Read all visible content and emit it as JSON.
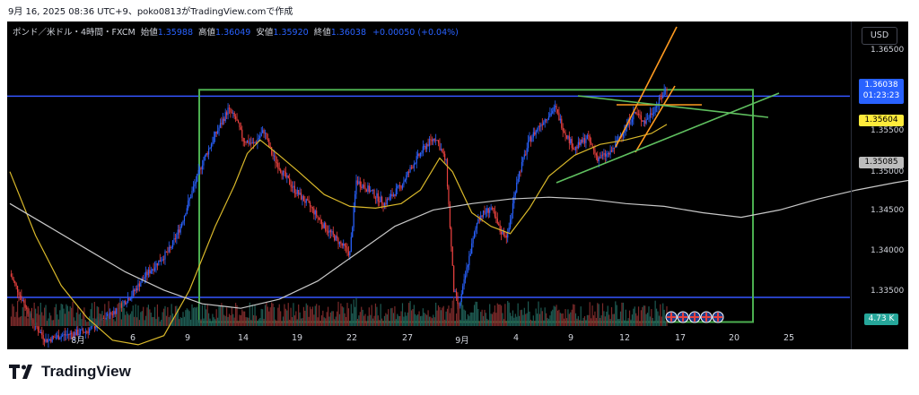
{
  "caption": "9月 16, 2025 08:36 UTC+9、poko0813がTradingView.comで作成",
  "legend": {
    "symbol": "ポンド／米ドル・4時間・FXCM",
    "open_label": "始値",
    "open": "1.35988",
    "high_label": "高値",
    "high": "1.36049",
    "low_label": "安値",
    "low": "1.35920",
    "close_label": "終値",
    "close": "1.36038",
    "change": "+0.00050 (+0.04%)"
  },
  "currency_button": "USD",
  "price_tags": {
    "last_price": "1.36038",
    "countdown": "01:23:23",
    "yellow_ma": "1.35604",
    "gray_ma": "1.35085",
    "volume": "4.73 K"
  },
  "colors": {
    "bull": "#2962ff",
    "bear": "#e8413f",
    "yellow_ma": "#d9b82a",
    "gray_ma": "#c8c8c8",
    "range_box": "#4caf50",
    "hline": "#3455ff",
    "trend_orange": "#ff9a1f",
    "trend_green": "#5fbf5f"
  },
  "flag_icons": [
    "uk-flag-icon",
    "uk-flag-icon",
    "uk-flag-icon",
    "uk-flag-icon",
    "uk-flag-icon"
  ],
  "logo_text": "TradingView",
  "chart_data": {
    "type": "candlestick",
    "symbol": "GBP/USD",
    "timeframe": "4時間",
    "ylim": [
      1.3315,
      1.3675
    ],
    "y_ticks": [
      "1.36500",
      "1.36000",
      "1.35500",
      "1.35000",
      "1.34500",
      "1.34000",
      "1.33500"
    ],
    "x_ticks": [
      "8月",
      "6",
      "9",
      "14",
      "19",
      "22",
      "27",
      "9月",
      "4",
      "9",
      "12",
      "17",
      "20",
      "25"
    ],
    "grid": false,
    "horizontal_lines": [
      1.3593,
      1.3372
    ],
    "range_box": {
      "y_top": 1.36,
      "y_bottom": 1.3345
    },
    "close_path": [
      [
        0,
        1.3398
      ],
      [
        18,
        1.3345
      ],
      [
        28,
        1.3325
      ],
      [
        40,
        1.333
      ],
      [
        60,
        1.3335
      ],
      [
        80,
        1.3355
      ],
      [
        95,
        1.3375
      ],
      [
        105,
        1.3395
      ],
      [
        115,
        1.341
      ],
      [
        125,
        1.3425
      ],
      [
        133,
        1.345
      ],
      [
        140,
        1.348
      ],
      [
        150,
        1.352
      ],
      [
        160,
        1.355
      ],
      [
        170,
        1.3578
      ],
      [
        176,
        1.3568
      ],
      [
        182,
        1.3545
      ],
      [
        190,
        1.354
      ],
      [
        198,
        1.3555
      ],
      [
        204,
        1.353
      ],
      [
        212,
        1.351
      ],
      [
        222,
        1.349
      ],
      [
        235,
        1.347
      ],
      [
        245,
        1.345
      ],
      [
        255,
        1.3435
      ],
      [
        265,
        1.342
      ],
      [
        270,
        1.35
      ],
      [
        280,
        1.349
      ],
      [
        292,
        1.3475
      ],
      [
        305,
        1.3495
      ],
      [
        315,
        1.352
      ],
      [
        325,
        1.354
      ],
      [
        332,
        1.3548
      ],
      [
        340,
        1.352
      ],
      [
        346,
        1.338
      ],
      [
        350,
        1.336
      ],
      [
        357,
        1.341
      ],
      [
        365,
        1.346
      ],
      [
        375,
        1.347
      ],
      [
        382,
        1.3445
      ],
      [
        388,
        1.344
      ],
      [
        395,
        1.35
      ],
      [
        405,
        1.3545
      ],
      [
        415,
        1.3565
      ],
      [
        425,
        1.358
      ],
      [
        432,
        1.3555
      ],
      [
        440,
        1.3535
      ],
      [
        450,
        1.3548
      ],
      [
        458,
        1.3525
      ],
      [
        468,
        1.353
      ],
      [
        478,
        1.3555
      ],
      [
        487,
        1.3575
      ],
      [
        495,
        1.3565
      ],
      [
        505,
        1.3585
      ],
      [
        512,
        1.3603
      ]
    ],
    "series": [
      {
        "name": "",
        "color": "yellow_ma",
        "points": [
          [
            0,
            1.351
          ],
          [
            20,
            1.344
          ],
          [
            40,
            1.3385
          ],
          [
            60,
            1.335
          ],
          [
            80,
            1.3325
          ],
          [
            100,
            1.332
          ],
          [
            120,
            1.333
          ],
          [
            140,
            1.338
          ],
          [
            160,
            1.345
          ],
          [
            175,
            1.3495
          ],
          [
            185,
            1.353
          ],
          [
            195,
            1.3545
          ],
          [
            210,
            1.3528
          ],
          [
            225,
            1.351
          ],
          [
            245,
            1.3485
          ],
          [
            265,
            1.3472
          ],
          [
            285,
            1.347
          ],
          [
            305,
            1.3475
          ],
          [
            320,
            1.349
          ],
          [
            335,
            1.3525
          ],
          [
            345,
            1.351
          ],
          [
            360,
            1.3465
          ],
          [
            375,
            1.345
          ],
          [
            390,
            1.3442
          ],
          [
            405,
            1.347
          ],
          [
            420,
            1.3505
          ],
          [
            440,
            1.3528
          ],
          [
            460,
            1.354
          ],
          [
            480,
            1.3545
          ],
          [
            500,
            1.3552
          ],
          [
            512,
            1.3562
          ]
        ]
      },
      {
        "name": "",
        "color": "gray_ma",
        "points": [
          [
            0,
            1.3475
          ],
          [
            30,
            1.345
          ],
          [
            60,
            1.3425
          ],
          [
            90,
            1.34
          ],
          [
            120,
            1.338
          ],
          [
            150,
            1.3365
          ],
          [
            180,
            1.336
          ],
          [
            210,
            1.337
          ],
          [
            240,
            1.339
          ],
          [
            270,
            1.342
          ],
          [
            300,
            1.345
          ],
          [
            330,
            1.3468
          ],
          [
            360,
            1.3475
          ],
          [
            390,
            1.348
          ],
          [
            420,
            1.3482
          ],
          [
            450,
            1.348
          ],
          [
            480,
            1.3475
          ],
          [
            510,
            1.3472
          ],
          [
            540,
            1.3465
          ],
          [
            570,
            1.346
          ],
          [
            600,
            1.3468
          ],
          [
            630,
            1.348
          ],
          [
            660,
            1.349
          ],
          [
            690,
            1.3498
          ],
          [
            720,
            1.3505
          ],
          [
            745,
            1.351
          ]
        ]
      }
    ],
    "volume_y_tag": "4.73 K"
  }
}
